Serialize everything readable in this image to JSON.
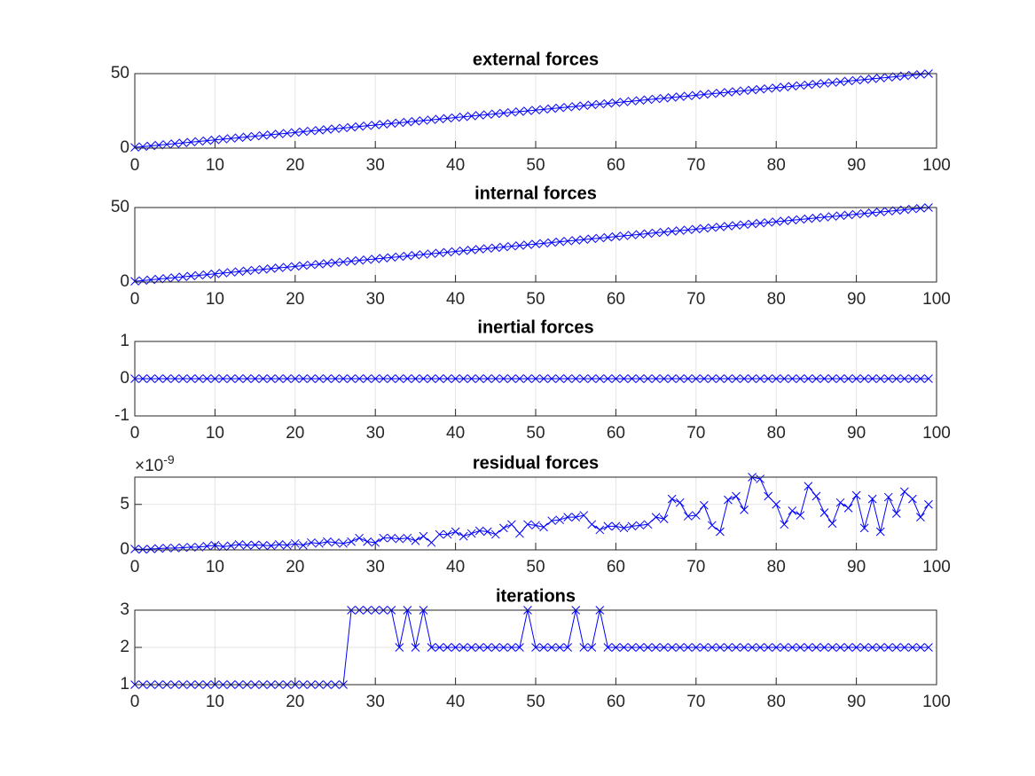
{
  "chart_data": [
    {
      "type": "line",
      "title": "external forces",
      "color": "#0000ff",
      "marker": "x",
      "grid": true,
      "xlim": [
        0,
        100
      ],
      "xticks": [
        0,
        10,
        20,
        30,
        40,
        50,
        60,
        70,
        80,
        90,
        100
      ],
      "ylim": [
        0,
        50
      ],
      "yticks": [
        0,
        50
      ],
      "x": [
        0,
        1,
        2,
        3,
        4,
        5,
        6,
        7,
        8,
        9,
        10,
        11,
        12,
        13,
        14,
        15,
        16,
        17,
        18,
        19,
        20,
        21,
        22,
        23,
        24,
        25,
        26,
        27,
        28,
        29,
        30,
        31,
        32,
        33,
        34,
        35,
        36,
        37,
        38,
        39,
        40,
        41,
        42,
        43,
        44,
        45,
        46,
        47,
        48,
        49,
        50,
        51,
        52,
        53,
        54,
        55,
        56,
        57,
        58,
        59,
        60,
        61,
        62,
        63,
        64,
        65,
        66,
        67,
        68,
        69,
        70,
        71,
        72,
        73,
        74,
        75,
        76,
        77,
        78,
        79,
        80,
        81,
        82,
        83,
        84,
        85,
        86,
        87,
        88,
        89,
        90,
        91,
        92,
        93,
        94,
        95,
        96,
        97,
        98,
        99
      ],
      "values": [
        0.5,
        1,
        1.5,
        2,
        2.5,
        3,
        3.5,
        4,
        4.5,
        5,
        5.5,
        6,
        6.5,
        7,
        7.5,
        8,
        8.5,
        9,
        9.5,
        10,
        10.5,
        11,
        11.5,
        12,
        12.5,
        13,
        13.5,
        14,
        14.5,
        15,
        15.5,
        16,
        16.5,
        17,
        17.5,
        18,
        18.5,
        19,
        19.5,
        20,
        20.5,
        21,
        21.5,
        22,
        22.5,
        23,
        23.5,
        24,
        24.5,
        25,
        25.5,
        26,
        26.5,
        27,
        27.5,
        28,
        28.5,
        29,
        29.5,
        30,
        30.5,
        31,
        31.5,
        32,
        32.5,
        33,
        33.5,
        34,
        34.5,
        35,
        35.5,
        36,
        36.5,
        37,
        37.5,
        38,
        38.5,
        39,
        39.5,
        40,
        40.5,
        41,
        41.5,
        42,
        42.5,
        43,
        43.5,
        44,
        44.5,
        45,
        45.5,
        46,
        46.5,
        47,
        47.5,
        48,
        48.5,
        49,
        49.5,
        50
      ]
    },
    {
      "type": "line",
      "title": "internal forces",
      "color": "#0000ff",
      "marker": "x",
      "grid": true,
      "xlim": [
        0,
        100
      ],
      "xticks": [
        0,
        10,
        20,
        30,
        40,
        50,
        60,
        70,
        80,
        90,
        100
      ],
      "ylim": [
        0,
        50
      ],
      "yticks": [
        0,
        50
      ],
      "x": [
        0,
        1,
        2,
        3,
        4,
        5,
        6,
        7,
        8,
        9,
        10,
        11,
        12,
        13,
        14,
        15,
        16,
        17,
        18,
        19,
        20,
        21,
        22,
        23,
        24,
        25,
        26,
        27,
        28,
        29,
        30,
        31,
        32,
        33,
        34,
        35,
        36,
        37,
        38,
        39,
        40,
        41,
        42,
        43,
        44,
        45,
        46,
        47,
        48,
        49,
        50,
        51,
        52,
        53,
        54,
        55,
        56,
        57,
        58,
        59,
        60,
        61,
        62,
        63,
        64,
        65,
        66,
        67,
        68,
        69,
        70,
        71,
        72,
        73,
        74,
        75,
        76,
        77,
        78,
        79,
        80,
        81,
        82,
        83,
        84,
        85,
        86,
        87,
        88,
        89,
        90,
        91,
        92,
        93,
        94,
        95,
        96,
        97,
        98,
        99
      ],
      "values": [
        0.5,
        1,
        1.5,
        2,
        2.5,
        3,
        3.5,
        4,
        4.5,
        5,
        5.5,
        6,
        6.5,
        7,
        7.5,
        8,
        8.5,
        9,
        9.5,
        10,
        10.5,
        11,
        11.5,
        12,
        12.5,
        13,
        13.5,
        14,
        14.5,
        15,
        15.5,
        16,
        16.5,
        17,
        17.5,
        18,
        18.5,
        19,
        19.5,
        20,
        20.5,
        21,
        21.5,
        22,
        22.5,
        23,
        23.5,
        24,
        24.5,
        25,
        25.5,
        26,
        26.5,
        27,
        27.5,
        28,
        28.5,
        29,
        29.5,
        30,
        30.5,
        31,
        31.5,
        32,
        32.5,
        33,
        33.5,
        34,
        34.5,
        35,
        35.5,
        36,
        36.5,
        37,
        37.5,
        38,
        38.5,
        39,
        39.5,
        40,
        40.5,
        41,
        41.5,
        42,
        42.5,
        43,
        43.5,
        44,
        44.5,
        45,
        45.5,
        46,
        46.5,
        47,
        47.5,
        48,
        48.5,
        49,
        49.5,
        50
      ]
    },
    {
      "type": "line",
      "title": "inertial forces",
      "color": "#0000ff",
      "marker": "x",
      "grid": true,
      "xlim": [
        0,
        100
      ],
      "xticks": [
        0,
        10,
        20,
        30,
        40,
        50,
        60,
        70,
        80,
        90,
        100
      ],
      "ylim": [
        -1,
        1
      ],
      "yticks": [
        -1,
        0,
        1
      ],
      "x": [
        0,
        1,
        2,
        3,
        4,
        5,
        6,
        7,
        8,
        9,
        10,
        11,
        12,
        13,
        14,
        15,
        16,
        17,
        18,
        19,
        20,
        21,
        22,
        23,
        24,
        25,
        26,
        27,
        28,
        29,
        30,
        31,
        32,
        33,
        34,
        35,
        36,
        37,
        38,
        39,
        40,
        41,
        42,
        43,
        44,
        45,
        46,
        47,
        48,
        49,
        50,
        51,
        52,
        53,
        54,
        55,
        56,
        57,
        58,
        59,
        60,
        61,
        62,
        63,
        64,
        65,
        66,
        67,
        68,
        69,
        70,
        71,
        72,
        73,
        74,
        75,
        76,
        77,
        78,
        79,
        80,
        81,
        82,
        83,
        84,
        85,
        86,
        87,
        88,
        89,
        90,
        91,
        92,
        93,
        94,
        95,
        96,
        97,
        98,
        99
      ],
      "values": [
        0,
        0,
        0,
        0,
        0,
        0,
        0,
        0,
        0,
        0,
        0,
        0,
        0,
        0,
        0,
        0,
        0,
        0,
        0,
        0,
        0,
        0,
        0,
        0,
        0,
        0,
        0,
        0,
        0,
        0,
        0,
        0,
        0,
        0,
        0,
        0,
        0,
        0,
        0,
        0,
        0,
        0,
        0,
        0,
        0,
        0,
        0,
        0,
        0,
        0,
        0,
        0,
        0,
        0,
        0,
        0,
        0,
        0,
        0,
        0,
        0,
        0,
        0,
        0,
        0,
        0,
        0,
        0,
        0,
        0,
        0,
        0,
        0,
        0,
        0,
        0,
        0,
        0,
        0,
        0,
        0,
        0,
        0,
        0,
        0,
        0,
        0,
        0,
        0,
        0,
        0,
        0,
        0,
        0,
        0,
        0,
        0,
        0,
        0,
        0
      ]
    },
    {
      "type": "line",
      "title": "residual forces",
      "color": "#0000ff",
      "marker": "x",
      "grid": true,
      "y_multiplier": {
        "base": "×10",
        "exponent": "-9"
      },
      "xlim": [
        0,
        100
      ],
      "xticks": [
        0,
        10,
        20,
        30,
        40,
        50,
        60,
        70,
        80,
        90,
        100
      ],
      "ylim": [
        0,
        8
      ],
      "yticks": [
        0,
        5
      ],
      "x": [
        0,
        1,
        2,
        3,
        4,
        5,
        6,
        7,
        8,
        9,
        10,
        11,
        12,
        13,
        14,
        15,
        16,
        17,
        18,
        19,
        20,
        21,
        22,
        23,
        24,
        25,
        26,
        27,
        28,
        29,
        30,
        31,
        32,
        33,
        34,
        35,
        36,
        37,
        38,
        39,
        40,
        41,
        42,
        43,
        44,
        45,
        46,
        47,
        48,
        49,
        50,
        51,
        52,
        53,
        54,
        55,
        56,
        57,
        58,
        59,
        60,
        61,
        62,
        63,
        64,
        65,
        66,
        67,
        68,
        69,
        70,
        71,
        72,
        73,
        74,
        75,
        76,
        77,
        78,
        79,
        80,
        81,
        82,
        83,
        84,
        85,
        86,
        87,
        88,
        89,
        90,
        91,
        92,
        93,
        94,
        95,
        96,
        97,
        98,
        99
      ],
      "values": [
        0.1,
        0.05,
        0.1,
        0.15,
        0.2,
        0.2,
        0.25,
        0.3,
        0.3,
        0.4,
        0.5,
        0.35,
        0.45,
        0.6,
        0.5,
        0.55,
        0.5,
        0.45,
        0.6,
        0.5,
        0.7,
        0.5,
        0.8,
        0.7,
        0.9,
        0.8,
        0.7,
        0.9,
        1.3,
        0.9,
        0.8,
        1.3,
        1.3,
        1.2,
        1.3,
        1.0,
        1.5,
        0.8,
        1.7,
        1.7,
        2.0,
        1.5,
        1.8,
        2.1,
        2.0,
        1.7,
        2.4,
        2.8,
        1.8,
        2.8,
        2.7,
        2.5,
        3.2,
        3.3,
        3.6,
        3.6,
        3.8,
        2.8,
        2.2,
        2.6,
        2.6,
        2.4,
        2.6,
        2.7,
        2.8,
        3.6,
        3.4,
        5.6,
        5.2,
        3.7,
        3.8,
        4.9,
        2.7,
        2.0,
        5.5,
        5.9,
        4.4,
        8.0,
        7.8,
        5.9,
        5.0,
        2.8,
        4.3,
        3.8,
        7.0,
        5.9,
        4.1,
        2.9,
        5.2,
        4.6,
        6.0,
        2.4,
        5.6,
        2.0,
        5.8,
        4.0,
        6.4,
        5.6,
        3.6,
        5.0
      ]
    },
    {
      "type": "line",
      "title": "iterations",
      "color": "#0000ff",
      "marker": "x",
      "grid": true,
      "xlim": [
        0,
        100
      ],
      "xticks": [
        0,
        10,
        20,
        30,
        40,
        50,
        60,
        70,
        80,
        90,
        100
      ],
      "ylim": [
        1,
        3
      ],
      "yticks": [
        1,
        2,
        3
      ],
      "x": [
        0,
        1,
        2,
        3,
        4,
        5,
        6,
        7,
        8,
        9,
        10,
        11,
        12,
        13,
        14,
        15,
        16,
        17,
        18,
        19,
        20,
        21,
        22,
        23,
        24,
        25,
        26,
        27,
        28,
        29,
        30,
        31,
        32,
        33,
        34,
        35,
        36,
        37,
        38,
        39,
        40,
        41,
        42,
        43,
        44,
        45,
        46,
        47,
        48,
        49,
        50,
        51,
        52,
        53,
        54,
        55,
        56,
        57,
        58,
        59,
        60,
        61,
        62,
        63,
        64,
        65,
        66,
        67,
        68,
        69,
        70,
        71,
        72,
        73,
        74,
        75,
        76,
        77,
        78,
        79,
        80,
        81,
        82,
        83,
        84,
        85,
        86,
        87,
        88,
        89,
        90,
        91,
        92,
        93,
        94,
        95,
        96,
        97,
        98,
        99
      ],
      "values": [
        1,
        1,
        1,
        1,
        1,
        1,
        1,
        1,
        1,
        1,
        1,
        1,
        1,
        1,
        1,
        1,
        1,
        1,
        1,
        1,
        1,
        1,
        1,
        1,
        1,
        1,
        1,
        3,
        3,
        3,
        3,
        3,
        3,
        2,
        3,
        2,
        3,
        2,
        2,
        2,
        2,
        2,
        2,
        2,
        2,
        2,
        2,
        2,
        2,
        3,
        2,
        2,
        2,
        2,
        2,
        3,
        2,
        2,
        3,
        2,
        2,
        2,
        2,
        2,
        2,
        2,
        2,
        2,
        2,
        2,
        2,
        2,
        2,
        2,
        2,
        2,
        2,
        2,
        2,
        2,
        2,
        2,
        2,
        2,
        2,
        2,
        2,
        2,
        2,
        2,
        2,
        2,
        2,
        2,
        2,
        2,
        2,
        2,
        2,
        2
      ]
    }
  ]
}
